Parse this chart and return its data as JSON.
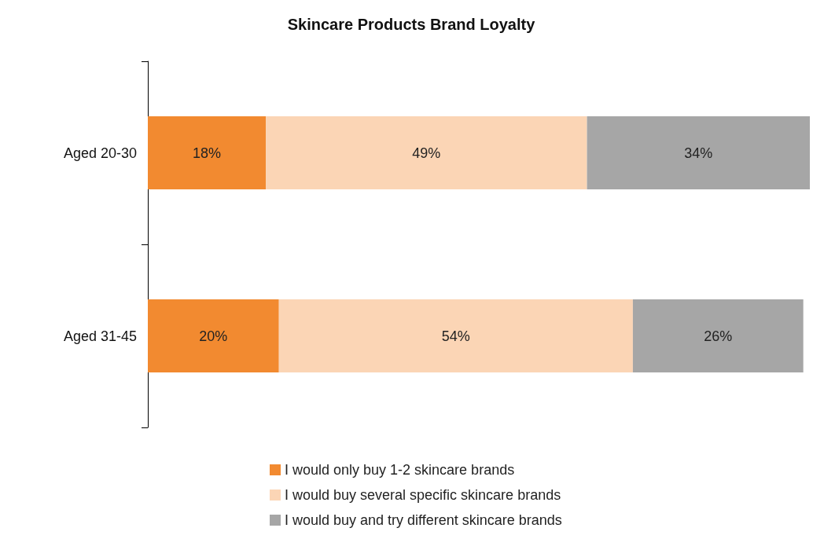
{
  "chart_data": {
    "type": "bar",
    "title": "Skincare Products Brand Loyalty",
    "orientation": "horizontal",
    "stacked": true,
    "categories": [
      "Aged 20-30",
      "Aged 31-45"
    ],
    "series": [
      {
        "name": "I would only buy 1-2 skincare brands",
        "color": "#f28a30",
        "values": [
          18,
          20
        ],
        "value_labels": [
          "18%",
          "20%"
        ]
      },
      {
        "name": "I would buy several specific skincare brands",
        "color": "#fbd5b5",
        "values": [
          49,
          54
        ],
        "value_labels": [
          "49%",
          "54%"
        ]
      },
      {
        "name": "I would buy and try different skincare brands",
        "color": "#a6a6a6",
        "values": [
          34,
          26
        ],
        "value_labels": [
          "34%",
          "26%"
        ]
      }
    ],
    "legend": "bottom"
  }
}
